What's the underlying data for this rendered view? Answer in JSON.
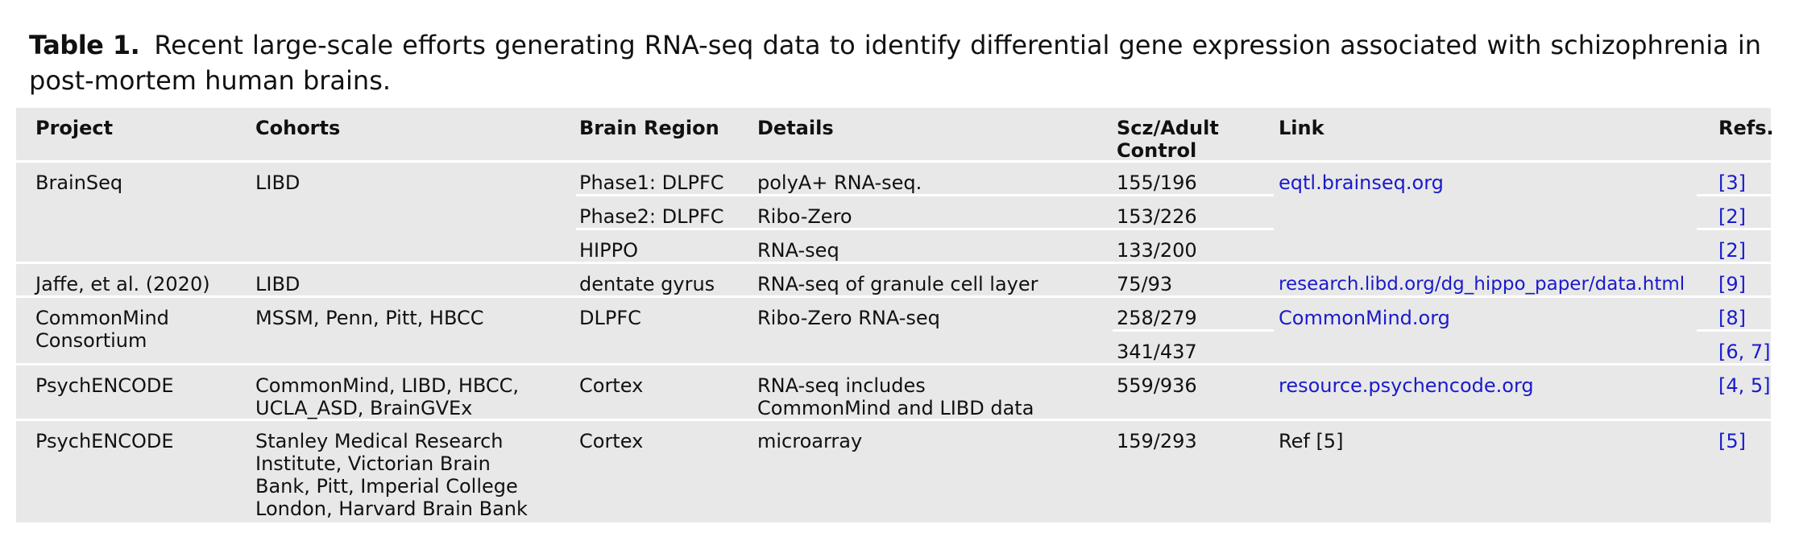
{
  "caption": {
    "label": "Table 1.",
    "text": "Recent large-scale efforts generating RNA-seq data to identify differential gene expression associated with schizophrenia in post-mortem human brains."
  },
  "headers": {
    "project": "Project",
    "cohorts": "Cohorts",
    "region": "Brain Region",
    "details": "Details",
    "ratio": "Scz/Adult Control",
    "link": "Link",
    "refs": "Refs."
  },
  "rows": {
    "brainseq": {
      "project": "BrainSeq",
      "cohorts": "LIBD",
      "link": "eqtl.brainseq.org",
      "sub": [
        {
          "region": "Phase1: DLPFC",
          "details": "polyA+ RNA-seq.",
          "ratio": "155/196",
          "refs": "[3]"
        },
        {
          "region": "Phase2: DLPFC",
          "details": "Ribo-Zero",
          "ratio": "153/226",
          "refs": "[2]"
        },
        {
          "region": "HIPPO",
          "details": "RNA-seq",
          "ratio": "133/200",
          "refs": "[2]"
        }
      ]
    },
    "jaffe": {
      "project": "Jaffe, et al. (2020)",
      "cohorts": "LIBD",
      "region": "dentate gyrus",
      "details": "RNA-seq of granule cell layer",
      "ratio": "75/93",
      "link": "research.libd.org/dg_hippo_paper/data.html",
      "refs": "[9]"
    },
    "commonmind": {
      "project": "CommonMind Consortium",
      "cohorts": "MSSM, Penn, Pitt, HBCC",
      "region": "DLPFC",
      "details": "Ribo-Zero RNA-seq",
      "link": "CommonMind.org",
      "sub": [
        {
          "ratio": "258/279",
          "refs": "[8]"
        },
        {
          "ratio": "341/437",
          "refs": "[6, 7]"
        }
      ]
    },
    "psychencode1": {
      "project": "PsychENCODE",
      "cohorts": "CommonMind, LIBD, HBCC, UCLA_ASD, BrainGVEx",
      "region": "Cortex",
      "details": "RNA-seq includes CommonMind and LIBD data",
      "ratio": "559/936",
      "link": "resource.psychencode.org",
      "refs": "[4, 5]"
    },
    "psychencode2": {
      "project": "PsychENCODE",
      "cohorts": "Stanley Medical Research Institute, Victorian Brain Bank, Pitt, Imperial College London, Harvard Brain Bank",
      "region": "Cortex",
      "details": "microarray",
      "ratio": "159/293",
      "link": "Ref [5]",
      "refs": "[5]"
    }
  }
}
